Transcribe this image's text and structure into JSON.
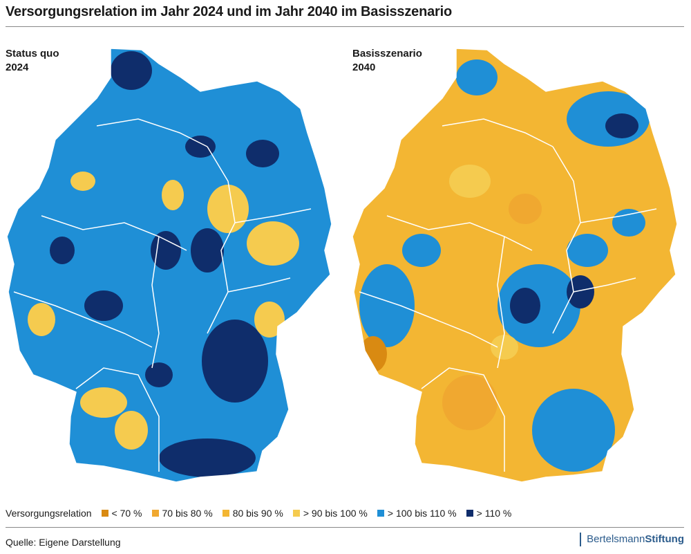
{
  "title": "Versorgungsrelation im Jahr 2024 und im Jahr 2040 im Basisszenario",
  "panels": [
    {
      "label_line1": "Status quo",
      "label_line2": "2024",
      "dominant": "#1f8fd6",
      "secondary": "#0f2d6b",
      "accent": "#f5cb4f"
    },
    {
      "label_line1": "Basisszenario",
      "label_line2": "2040",
      "dominant": "#f3b633",
      "secondary": "#1f8fd6",
      "accent": "#0f2d6b"
    }
  ],
  "legend": {
    "title": "Versorgungsrelation",
    "items": [
      {
        "label": "< 70 %",
        "color": "#d98a12"
      },
      {
        "label": "70 bis 80 %",
        "color": "#f0a830"
      },
      {
        "label": "80 bis 90 %",
        "color": "#f3b633"
      },
      {
        "label": "> 90 bis 100 %",
        "color": "#f5cb4f"
      },
      {
        "label": "> 100 bis 110 %",
        "color": "#1f8fd6"
      },
      {
        "label": "> 110 %",
        "color": "#0f2d6b"
      }
    ]
  },
  "source": "Quelle: Eigene Darstellung",
  "brand": {
    "part1": "Bertelsmann",
    "part2": "Stiftung"
  }
}
